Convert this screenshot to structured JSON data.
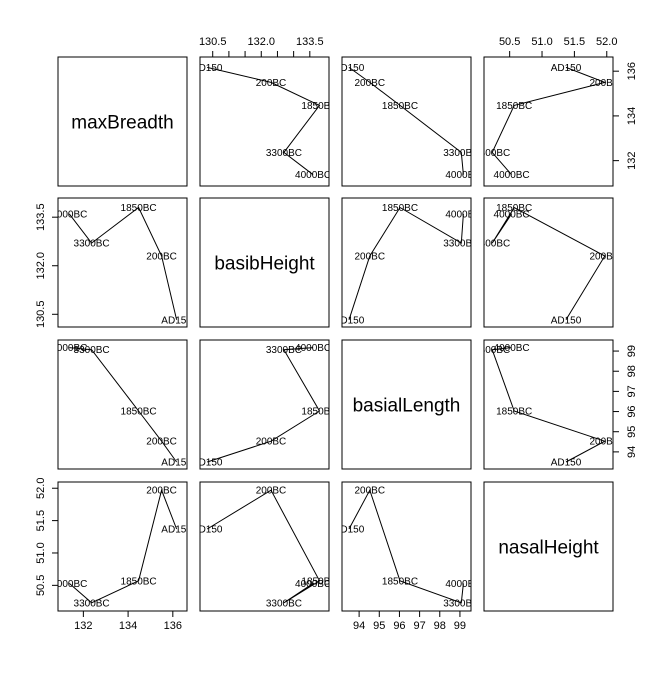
{
  "chart_data": {
    "type": "scatter",
    "subtype": "pairs-matrix",
    "variables": [
      "maxBreadth",
      "basibHeight",
      "basialLength",
      "nasalHeight"
    ],
    "period_labels": [
      "4000BC",
      "3300BC",
      "1850BC",
      "200BC",
      "AD150"
    ],
    "values": {
      "maxBreadth": [
        131.37,
        132.37,
        134.47,
        135.5,
        136.17
      ],
      "basibHeight": [
        133.6,
        132.7,
        133.8,
        132.3,
        130.33
      ],
      "basialLength": [
        99.17,
        99.07,
        96.03,
        94.53,
        93.5
      ],
      "nasalHeight": [
        50.53,
        50.23,
        50.57,
        51.97,
        51.37
      ]
    },
    "axis_ticks": {
      "maxBreadth": [
        "132",
        "134",
        "136"
      ],
      "basibHeight": [
        "130.5",
        "132.0",
        "133.5"
      ],
      "basialLength": [
        "94",
        "95",
        "96",
        "97",
        "98",
        "99"
      ],
      "nasalHeight": [
        "50.5",
        "51.0",
        "51.5",
        "52.0"
      ]
    },
    "axis_ranges": {
      "maxBreadth": [
        131.0,
        136.5
      ],
      "basibHeight": [
        130.2,
        134.0
      ],
      "basialLength": [
        93.3,
        99.4
      ],
      "nasalHeight": [
        50.15,
        52.05
      ]
    },
    "minor_ticks": {
      "basibHeight": [
        130.5,
        131.0,
        131.5,
        132.0,
        132.5,
        133.0,
        133.5
      ]
    },
    "grid": false,
    "legend": "none"
  }
}
